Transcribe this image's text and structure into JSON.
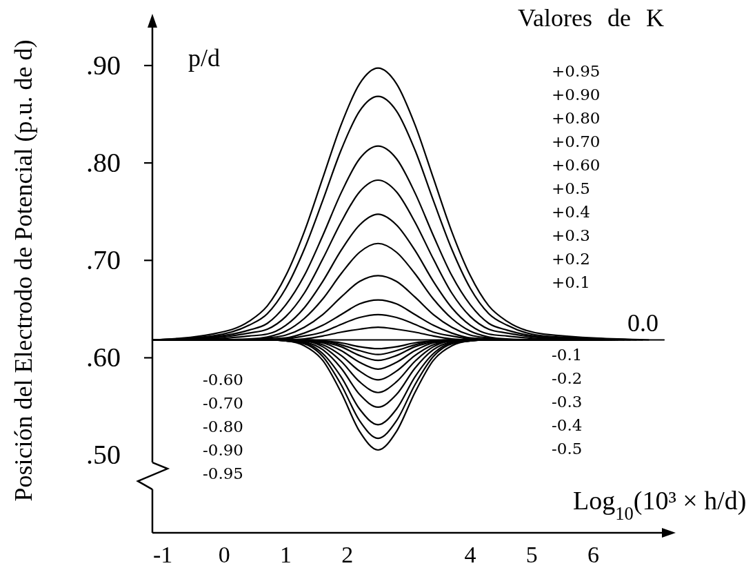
{
  "chart_data": {
    "type": "line",
    "ylabel": "Posición del Electrodo de Potencial (p.u. de d)",
    "xlabel": "Log$_{10}$(10³ × h/d)",
    "annotations": [
      "Valores de K",
      "p/d",
      "+0.95",
      "+0.90",
      "+0.80",
      "+0.70",
      "+0.60",
      "+0.5",
      "+0.4",
      "+0.3",
      "+0.2",
      "+0.1",
      "0.0",
      "-0.1",
      "-0.2",
      "-0.3",
      "-0.4",
      "-0.5",
      "-0.60",
      "-0.70",
      "-0.80",
      "-0.90",
      "-0.95"
    ],
    "xlim": [
      -1.17,
      7.15
    ],
    "ylim": [
      0.42,
      0.94
    ],
    "xticks": [
      -1,
      0,
      1,
      2,
      4,
      5,
      6
    ],
    "yticks": [
      {
        "value": 0.5,
        "label": ".50"
      },
      {
        "value": 0.6,
        "label": ".60"
      },
      {
        "value": 0.7,
        "label": ".70"
      },
      {
        "value": 0.8,
        "label": ".80"
      },
      {
        "value": 0.9,
        "label": ".90"
      }
    ],
    "series": [
      {
        "color": "#000000",
        "x": [
          -1.17,
          -0.2,
          0.4,
          0.7,
          1.0,
          1.3,
          1.6,
          1.9,
          2.2,
          2.5,
          2.8,
          3.1,
          3.4,
          3.7,
          4.0,
          4.3,
          4.6,
          5.2,
          6.9
        ],
        "values": [
          0.618,
          0.624,
          0.637,
          0.653,
          0.684,
          0.729,
          0.784,
          0.839,
          0.881,
          0.897,
          0.881,
          0.839,
          0.784,
          0.729,
          0.684,
          0.653,
          0.637,
          0.624,
          0.618
        ]
      },
      {
        "color": "#000000",
        "x": [
          -1.17,
          -0.2,
          0.4,
          0.7,
          1.0,
          1.3,
          1.6,
          1.9,
          2.2,
          2.5,
          2.8,
          3.1,
          3.4,
          3.7,
          4.0,
          4.3,
          4.6,
          5.2,
          6.8
        ],
        "values": [
          0.618,
          0.622,
          0.633,
          0.645,
          0.671,
          0.711,
          0.761,
          0.813,
          0.853,
          0.868,
          0.853,
          0.813,
          0.761,
          0.711,
          0.671,
          0.645,
          0.633,
          0.622,
          0.618
        ]
      },
      {
        "color": "#000000",
        "x": [
          -1.17,
          -0.2,
          0.4,
          0.7,
          1.0,
          1.3,
          1.6,
          1.9,
          2.2,
          2.5,
          2.8,
          3.1,
          3.4,
          3.7,
          4.0,
          4.3,
          4.6,
          5.2,
          6.7
        ],
        "values": [
          0.618,
          0.621,
          0.628,
          0.635,
          0.654,
          0.684,
          0.725,
          0.769,
          0.804,
          0.817,
          0.804,
          0.769,
          0.725,
          0.684,
          0.654,
          0.635,
          0.628,
          0.621,
          0.618
        ]
      },
      {
        "color": "#000000",
        "x": [
          -1.17,
          -0.2,
          0.4,
          0.7,
          1.0,
          1.3,
          1.6,
          1.9,
          2.2,
          2.5,
          2.8,
          3.1,
          3.4,
          3.7,
          4.0,
          4.3,
          4.6,
          5.2,
          6.6
        ],
        "values": [
          0.618,
          0.62,
          0.625,
          0.629,
          0.642,
          0.666,
          0.701,
          0.739,
          0.77,
          0.782,
          0.77,
          0.739,
          0.701,
          0.666,
          0.642,
          0.629,
          0.625,
          0.62,
          0.618
        ]
      },
      {
        "color": "#000000",
        "x": [
          -1.17,
          -0.2,
          0.4,
          0.7,
          1.0,
          1.3,
          1.6,
          1.9,
          2.2,
          2.5,
          2.8,
          3.1,
          3.4,
          3.7,
          4.0,
          4.3,
          4.6,
          5.2,
          6.5
        ],
        "values": [
          0.618,
          0.619,
          0.622,
          0.624,
          0.633,
          0.651,
          0.678,
          0.71,
          0.736,
          0.747,
          0.736,
          0.71,
          0.678,
          0.651,
          0.633,
          0.624,
          0.622,
          0.619,
          0.618
        ]
      },
      {
        "color": "#000000",
        "x": [
          -1.17,
          -0.2,
          0.4,
          0.7,
          1.0,
          1.3,
          1.6,
          1.9,
          2.2,
          2.5,
          2.8,
          3.1,
          3.4,
          3.7,
          4.0,
          4.3,
          4.6,
          5.2,
          6.4
        ],
        "values": [
          0.618,
          0.618,
          0.619,
          0.621,
          0.627,
          0.64,
          0.66,
          0.686,
          0.708,
          0.717,
          0.708,
          0.686,
          0.66,
          0.64,
          0.627,
          0.621,
          0.619,
          0.618,
          0.618
        ]
      },
      {
        "color": "#000000",
        "x": [
          -1.17,
          -0.2,
          0.4,
          0.7,
          1.0,
          1.3,
          1.6,
          1.9,
          2.2,
          2.5,
          2.8,
          3.1,
          3.4,
          3.7,
          4.0,
          4.3,
          4.6,
          5.2,
          6.3
        ],
        "values": [
          0.618,
          0.618,
          0.618,
          0.62,
          0.623,
          0.631,
          0.644,
          0.662,
          0.678,
          0.684,
          0.678,
          0.662,
          0.644,
          0.631,
          0.623,
          0.62,
          0.618,
          0.618,
          0.618
        ]
      },
      {
        "color": "#000000",
        "x": [
          -1.17,
          -0.2,
          0.4,
          0.7,
          1.0,
          1.3,
          1.6,
          1.9,
          2.2,
          2.5,
          2.8,
          3.1,
          3.4,
          3.7,
          4.0,
          4.3,
          4.6,
          5.2,
          6.2
        ],
        "values": [
          0.618,
          0.618,
          0.618,
          0.619,
          0.62,
          0.625,
          0.633,
          0.644,
          0.655,
          0.659,
          0.655,
          0.644,
          0.633,
          0.625,
          0.62,
          0.619,
          0.618,
          0.618,
          0.618
        ]
      },
      {
        "color": "#000000",
        "x": [
          -1.17,
          -0.2,
          0.4,
          0.7,
          1.0,
          1.3,
          1.6,
          1.9,
          2.2,
          2.5,
          2.8,
          3.1,
          3.4,
          3.7,
          4.0,
          4.3,
          4.6,
          5.2,
          6.1
        ],
        "values": [
          0.618,
          0.618,
          0.618,
          0.618,
          0.619,
          0.622,
          0.626,
          0.634,
          0.641,
          0.644,
          0.641,
          0.634,
          0.626,
          0.622,
          0.619,
          0.618,
          0.618,
          0.618,
          0.618
        ]
      },
      {
        "color": "#000000",
        "x": [
          -1.17,
          -0.2,
          0.4,
          0.7,
          1.0,
          1.3,
          1.6,
          1.9,
          2.2,
          2.5,
          2.8,
          3.1,
          3.4,
          3.7,
          4.0,
          4.3,
          4.6,
          5.2,
          6.0
        ],
        "values": [
          0.618,
          0.618,
          0.618,
          0.618,
          0.618,
          0.619,
          0.622,
          0.626,
          0.629,
          0.631,
          0.629,
          0.626,
          0.622,
          0.619,
          0.618,
          0.618,
          0.618,
          0.618,
          0.618
        ]
      },
      {
        "color": "#000000",
        "x": [
          -1.17,
          7.15
        ],
        "values": [
          0.618,
          0.618
        ]
      },
      {
        "color": "#000000",
        "x": [
          -1.17,
          -0.2,
          0.4,
          0.7,
          1.0,
          1.3,
          1.6,
          1.9,
          2.2,
          2.5,
          2.8,
          3.1,
          3.4,
          3.7,
          4.0,
          4.3,
          4.6,
          5.2,
          5.4
        ],
        "values": [
          0.618,
          0.618,
          0.618,
          0.618,
          0.618,
          0.618,
          0.617,
          0.615,
          0.611,
          0.609,
          0.611,
          0.615,
          0.617,
          0.618,
          0.618,
          0.618,
          0.618,
          0.618,
          0.618
        ]
      },
      {
        "color": "#000000",
        "x": [
          -1.17,
          -0.2,
          0.4,
          0.7,
          1.0,
          1.3,
          1.6,
          1.9,
          2.2,
          2.5,
          2.8,
          3.1,
          3.4,
          3.7,
          4.0,
          4.3,
          4.6,
          5.2,
          5.5
        ],
        "values": [
          0.618,
          0.618,
          0.618,
          0.618,
          0.618,
          0.618,
          0.617,
          0.613,
          0.607,
          0.603,
          0.607,
          0.613,
          0.617,
          0.618,
          0.618,
          0.618,
          0.618,
          0.618,
          0.618
        ]
      },
      {
        "color": "#000000",
        "x": [
          -1.17,
          -0.2,
          0.4,
          0.7,
          1.0,
          1.3,
          1.6,
          1.9,
          2.2,
          2.5,
          2.8,
          3.1,
          3.4,
          3.7,
          4.0,
          4.3,
          4.6,
          5.2,
          5.6
        ],
        "values": [
          0.618,
          0.618,
          0.618,
          0.618,
          0.618,
          0.618,
          0.616,
          0.611,
          0.602,
          0.597,
          0.602,
          0.611,
          0.616,
          0.618,
          0.618,
          0.618,
          0.618,
          0.618,
          0.618
        ]
      },
      {
        "color": "#000000",
        "x": [
          -1.17,
          -0.2,
          0.4,
          0.7,
          1.0,
          1.3,
          1.6,
          1.9,
          2.2,
          2.5,
          2.8,
          3.1,
          3.4,
          3.7,
          4.0,
          4.3,
          4.6,
          5.2,
          5.7
        ],
        "values": [
          0.618,
          0.618,
          0.618,
          0.618,
          0.618,
          0.617,
          0.615,
          0.607,
          0.595,
          0.588,
          0.595,
          0.607,
          0.615,
          0.617,
          0.618,
          0.618,
          0.618,
          0.618,
          0.618
        ]
      },
      {
        "color": "#000000",
        "x": [
          -1.17,
          -0.2,
          0.4,
          0.7,
          1.0,
          1.3,
          1.6,
          1.9,
          2.2,
          2.5,
          2.8,
          3.1,
          3.4,
          3.7,
          4.0,
          4.3,
          4.6,
          5.2,
          5.8
        ],
        "values": [
          0.618,
          0.618,
          0.618,
          0.618,
          0.618,
          0.617,
          0.613,
          0.602,
          0.586,
          0.577,
          0.586,
          0.602,
          0.613,
          0.617,
          0.618,
          0.618,
          0.618,
          0.618,
          0.618
        ]
      },
      {
        "color": "#000000",
        "x": [
          -1.17,
          -0.2,
          0.4,
          0.7,
          1.0,
          1.3,
          1.6,
          1.9,
          2.2,
          2.5,
          2.8,
          3.1,
          3.4,
          3.7,
          4.0,
          4.3,
          4.6,
          5.2,
          5.9
        ],
        "values": [
          0.618,
          0.618,
          0.618,
          0.618,
          0.618,
          0.617,
          0.611,
          0.596,
          0.575,
          0.564,
          0.575,
          0.596,
          0.611,
          0.617,
          0.618,
          0.618,
          0.618,
          0.618,
          0.618
        ]
      },
      {
        "color": "#000000",
        "x": [
          -1.17,
          -0.2,
          0.4,
          0.7,
          1.0,
          1.3,
          1.6,
          1.9,
          2.2,
          2.5,
          2.8,
          3.1,
          3.4,
          3.7,
          4.0,
          4.3,
          4.6,
          5.2,
          6.05
        ],
        "values": [
          0.618,
          0.618,
          0.618,
          0.618,
          0.618,
          0.616,
          0.608,
          0.589,
          0.562,
          0.549,
          0.562,
          0.589,
          0.608,
          0.616,
          0.618,
          0.618,
          0.618,
          0.618,
          0.618
        ]
      },
      {
        "color": "#000000",
        "x": [
          -1.17,
          -0.2,
          0.4,
          0.7,
          1.0,
          1.3,
          1.6,
          1.9,
          2.2,
          2.5,
          2.8,
          3.1,
          3.4,
          3.7,
          4.0,
          4.3,
          4.6,
          5.2,
          6.15
        ],
        "values": [
          0.618,
          0.618,
          0.618,
          0.618,
          0.617,
          0.615,
          0.604,
          0.58,
          0.547,
          0.531,
          0.547,
          0.58,
          0.604,
          0.615,
          0.617,
          0.618,
          0.618,
          0.618,
          0.618
        ]
      },
      {
        "color": "#000000",
        "x": [
          -1.17,
          -0.2,
          0.4,
          0.7,
          1.0,
          1.3,
          1.6,
          1.9,
          2.2,
          2.5,
          2.8,
          3.1,
          3.4,
          3.7,
          4.0,
          4.3,
          4.6,
          5.2,
          6.25
        ],
        "values": [
          0.618,
          0.618,
          0.618,
          0.618,
          0.617,
          0.614,
          0.601,
          0.572,
          0.535,
          0.517,
          0.535,
          0.572,
          0.601,
          0.614,
          0.617,
          0.618,
          0.618,
          0.618,
          0.618
        ]
      },
      {
        "color": "#000000",
        "x": [
          -1.17,
          -0.2,
          0.4,
          0.7,
          1.0,
          1.3,
          1.6,
          1.9,
          2.2,
          2.5,
          2.8,
          3.1,
          3.4,
          3.7,
          4.0,
          4.3,
          4.6,
          5.2,
          6.35
        ],
        "values": [
          0.618,
          0.618,
          0.618,
          0.618,
          0.617,
          0.612,
          0.597,
          0.564,
          0.524,
          0.505,
          0.524,
          0.564,
          0.597,
          0.612,
          0.617,
          0.618,
          0.618,
          0.618,
          0.618
        ]
      }
    ]
  }
}
